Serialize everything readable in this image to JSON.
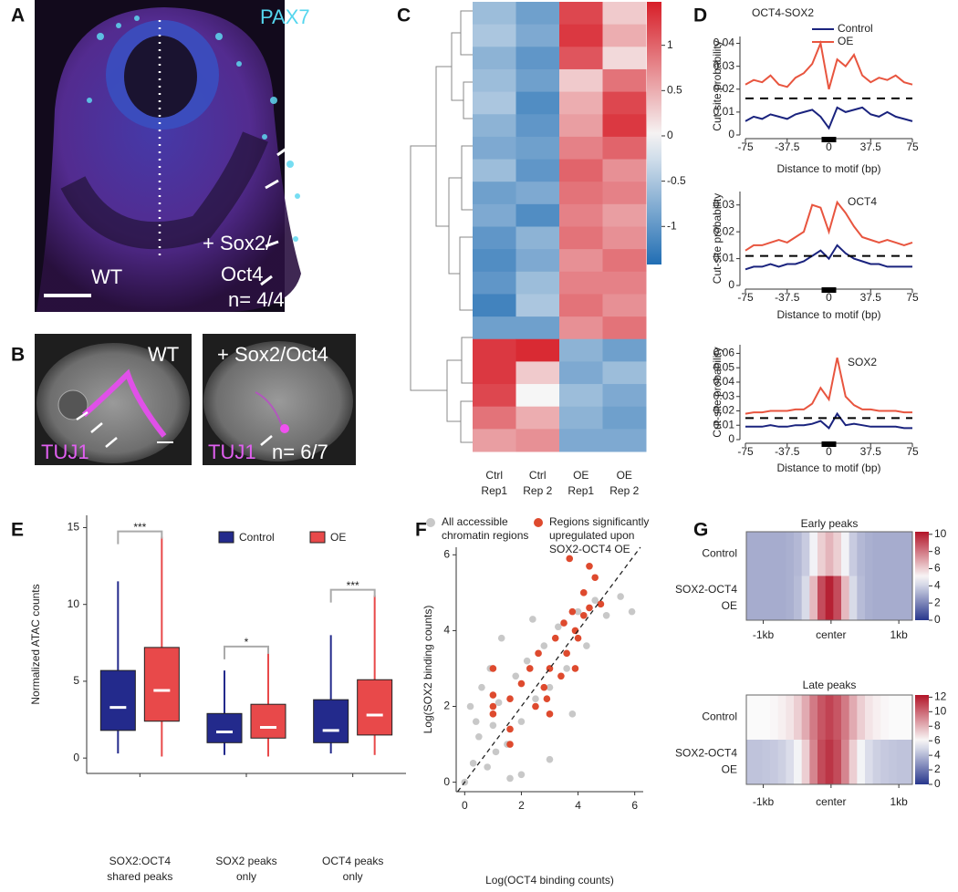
{
  "panel_labels": [
    "A",
    "B",
    "C",
    "D",
    "E",
    "F",
    "G"
  ],
  "images": {
    "a": {
      "marker": "PAX7",
      "control": "WT",
      "treatment": [
        "+ Sox2/",
        "Oct4"
      ],
      "n": "n= 4/4"
    },
    "b": {
      "control": "WT",
      "treatment": "+ Sox2/Oct4",
      "marker": "TUJ1",
      "n": "n= 6/7"
    }
  },
  "chart_data": [
    {
      "type": "heatmap",
      "categories": [
        [
          "Ctrl",
          "Rep1"
        ],
        [
          "Ctrl",
          "Rep 2"
        ],
        [
          "OE",
          "Rep1"
        ],
        [
          "OE",
          "Rep 2"
        ]
      ],
      "matrix": [
        [
          -0.6,
          -0.9,
          1.2,
          0.3
        ],
        [
          -0.5,
          -0.8,
          1.3,
          0.5
        ],
        [
          -0.7,
          -1.0,
          1.1,
          0.2
        ],
        [
          -0.6,
          -0.9,
          0.3,
          0.9
        ],
        [
          -0.5,
          -1.1,
          0.5,
          1.2
        ],
        [
          -0.7,
          -1.0,
          0.6,
          1.3
        ],
        [
          -0.8,
          -0.9,
          0.8,
          1.0
        ],
        [
          -0.6,
          -1.0,
          1.0,
          0.7
        ],
        [
          -0.9,
          -0.8,
          0.9,
          0.8
        ],
        [
          -0.8,
          -1.1,
          0.8,
          0.6
        ],
        [
          -1.0,
          -0.7,
          0.9,
          0.7
        ],
        [
          -1.1,
          -0.8,
          0.7,
          0.9
        ],
        [
          -1.0,
          -0.6,
          0.8,
          0.8
        ],
        [
          -1.2,
          -0.5,
          0.9,
          0.7
        ],
        [
          -0.9,
          -0.9,
          0.7,
          0.9
        ],
        [
          1.3,
          1.4,
          -0.7,
          -0.9
        ],
        [
          1.3,
          0.3,
          -0.8,
          -0.6
        ],
        [
          1.2,
          0.0,
          -0.6,
          -0.8
        ],
        [
          0.9,
          0.5,
          -0.7,
          -0.9
        ],
        [
          0.6,
          0.7,
          -0.8,
          -0.8
        ]
      ],
      "zlim": [
        -1.42,
        1.48
      ],
      "zticks": [
        1,
        0.5,
        0,
        -0.5,
        -1
      ]
    },
    {
      "type": "line",
      "title": "OCT4-SOX2",
      "xlabel": "Distance to motif (bp)",
      "ylabel": "Cut-site probability",
      "x": [
        -75,
        -67.5,
        -60,
        -52.5,
        -45,
        -37.5,
        -30,
        -22.5,
        -15,
        -7.5,
        0,
        7.5,
        15,
        22.5,
        30,
        37.5,
        45,
        52.5,
        60,
        67.5,
        75
      ],
      "series": [
        {
          "name": "Control",
          "color": "#1a237e",
          "values": [
            0.006,
            0.008,
            0.007,
            0.009,
            0.008,
            0.007,
            0.009,
            0.01,
            0.011,
            0.008,
            0.003,
            0.012,
            0.01,
            0.011,
            0.012,
            0.009,
            0.008,
            0.01,
            0.008,
            0.007,
            0.006
          ]
        },
        {
          "name": "OE",
          "color": "#e8553f",
          "values": [
            0.022,
            0.024,
            0.023,
            0.026,
            0.022,
            0.021,
            0.025,
            0.027,
            0.031,
            0.04,
            0.02,
            0.033,
            0.03,
            0.035,
            0.026,
            0.023,
            0.025,
            0.024,
            0.026,
            0.023,
            0.022
          ]
        }
      ],
      "reference_line": 0.016,
      "xlim": [
        -75,
        75
      ],
      "xticks": [
        -75,
        -37.5,
        0,
        37.5,
        75
      ],
      "ylim": [
        0,
        0.043
      ],
      "yticks": [
        0,
        0.01,
        0.02,
        0.03,
        0.04
      ]
    },
    {
      "type": "line",
      "title": "OCT4",
      "xlabel": "Distance to motif (bp)",
      "ylabel": "Cut-site probability",
      "x": [
        -75,
        -67.5,
        -60,
        -52.5,
        -45,
        -37.5,
        -30,
        -22.5,
        -15,
        -7.5,
        0,
        7.5,
        15,
        22.5,
        30,
        37.5,
        45,
        52.5,
        60,
        67.5,
        75
      ],
      "series": [
        {
          "color": "#1a237e",
          "values": [
            0.006,
            0.007,
            0.007,
            0.008,
            0.007,
            0.008,
            0.008,
            0.009,
            0.011,
            0.013,
            0.01,
            0.015,
            0.012,
            0.01,
            0.009,
            0.008,
            0.008,
            0.007,
            0.007,
            0.007,
            0.007
          ]
        },
        {
          "color": "#e8553f",
          "values": [
            0.013,
            0.015,
            0.015,
            0.016,
            0.017,
            0.016,
            0.018,
            0.02,
            0.03,
            0.029,
            0.02,
            0.031,
            0.027,
            0.022,
            0.018,
            0.017,
            0.016,
            0.017,
            0.016,
            0.015,
            0.016
          ]
        }
      ],
      "reference_line": 0.011,
      "xlim": [
        -75,
        75
      ],
      "xticks": [
        -75,
        -37.5,
        0,
        37.5,
        75
      ],
      "ylim": [
        0,
        0.035
      ],
      "yticks": [
        0,
        0.01,
        0.02,
        0.03
      ]
    },
    {
      "type": "line",
      "title": "SOX2",
      "xlabel": "Distance to motif (bp)",
      "ylabel": "Cut-site probability",
      "x": [
        -75,
        -67.5,
        -60,
        -52.5,
        -45,
        -37.5,
        -30,
        -22.5,
        -15,
        -7.5,
        0,
        7.5,
        15,
        22.5,
        30,
        37.5,
        45,
        52.5,
        60,
        67.5,
        75
      ],
      "series": [
        {
          "color": "#1a237e",
          "values": [
            0.009,
            0.009,
            0.009,
            0.01,
            0.009,
            0.009,
            0.01,
            0.01,
            0.011,
            0.013,
            0.008,
            0.018,
            0.01,
            0.011,
            0.01,
            0.009,
            0.009,
            0.009,
            0.009,
            0.008,
            0.008
          ]
        },
        {
          "color": "#e8553f",
          "values": [
            0.018,
            0.019,
            0.019,
            0.02,
            0.02,
            0.02,
            0.021,
            0.021,
            0.025,
            0.036,
            0.028,
            0.057,
            0.03,
            0.024,
            0.021,
            0.021,
            0.02,
            0.02,
            0.02,
            0.019,
            0.019
          ]
        }
      ],
      "reference_line": 0.015,
      "xlim": [
        -75,
        75
      ],
      "xticks": [
        -75,
        -37.5,
        0,
        37.5,
        75
      ],
      "ylim": [
        0,
        0.066
      ],
      "yticks": [
        0,
        0.01,
        0.02,
        0.03,
        0.04,
        0.05,
        0.06
      ]
    },
    {
      "type": "box",
      "ylabel": "Normalized ATAC counts",
      "categories": [
        [
          "SOX2:OCT4",
          "shared peaks"
        ],
        [
          "SOX2 peaks",
          "only"
        ],
        [
          "OCT4 peaks",
          "only"
        ]
      ],
      "series": [
        {
          "name": "Control",
          "color": "#232a8c",
          "stats": [
            [
              0.3,
              1.8,
              3.3,
              5.7,
              11.5
            ],
            [
              0.2,
              1.0,
              1.7,
              2.9,
              5.7
            ],
            [
              0.3,
              1.0,
              1.8,
              3.8,
              8.0
            ]
          ]
        },
        {
          "name": "OE",
          "color": "#e8494a",
          "stats": [
            [
              0.1,
              2.4,
              4.4,
              7.2,
              14.4
            ],
            [
              0.1,
              1.3,
              2.0,
              3.5,
              6.9
            ],
            [
              0.2,
              1.5,
              2.8,
              5.1,
              10.6
            ]
          ]
        }
      ],
      "significance": [
        "***",
        "*",
        "***"
      ],
      "ylim": [
        -1,
        15.8
      ],
      "yticks": [
        0,
        5,
        10,
        15
      ]
    },
    {
      "type": "scatter",
      "xlabel": "Log(OCT4 binding counts)",
      "ylabel": "Log(SOX2 binding counts)",
      "series": [
        {
          "name": [
            "All accessible",
            "chromatin regions"
          ],
          "color": "#c8c8c8",
          "x": [
            0,
            0.3,
            0.5,
            0.8,
            1,
            1.2,
            0.6,
            1.5,
            1.8,
            2,
            2.2,
            0.9,
            2.5,
            2.8,
            3,
            1.3,
            3.3,
            3.6,
            4,
            2.4,
            4.3,
            4.6,
            5,
            5.5,
            5.9,
            3,
            2,
            1.6,
            0.2,
            3.8,
            1.1,
            0.4
          ],
          "values": [
            0,
            0.5,
            1.2,
            0.4,
            1.5,
            2.1,
            2.5,
            1.0,
            2.8,
            1.6,
            3.2,
            3.0,
            2.2,
            3.6,
            2.5,
            3.8,
            4.1,
            3.0,
            4.5,
            4.3,
            3.6,
            4.8,
            4.4,
            4.9,
            4.5,
            0.6,
            0.2,
            0.1,
            2.0,
            1.8,
            0.8,
            1.6
          ]
        },
        {
          "name": [
            "Regions significantly",
            "upregulated upon",
            "SOX2-OCT4 OE"
          ],
          "color": "#de4a2e",
          "x": [
            1,
            1,
            1,
            1,
            1.6,
            1.6,
            1.6,
            2,
            2.3,
            2.5,
            2.6,
            2.8,
            3,
            3,
            3.2,
            3.4,
            3.5,
            3.6,
            3.8,
            3.9,
            4,
            4.2,
            4.2,
            4.4,
            4.6,
            4.8,
            3.7,
            4.4,
            3.9,
            2.9
          ],
          "values": [
            2.0,
            1.8,
            3.0,
            2.3,
            2.2,
            1.4,
            1.0,
            2.6,
            3.0,
            2.0,
            3.4,
            2.5,
            3.0,
            1.8,
            3.8,
            2.8,
            4.2,
            3.4,
            4.5,
            3.0,
            3.8,
            4.4,
            5.0,
            4.6,
            5.4,
            4.7,
            5.9,
            5.7,
            4.0,
            2.2
          ]
        }
      ],
      "xlim": [
        -0.3,
        6.3
      ],
      "xticks": [
        0,
        2,
        4,
        6
      ],
      "ylim": [
        -0.25,
        6.2
      ],
      "yticks": [
        0,
        2,
        4,
        6
      ]
    },
    {
      "type": "heatmap_profile",
      "title": "Early peaks",
      "rows": [
        [
          "Control"
        ],
        [
          "SOX2-OCT4",
          "OE"
        ]
      ],
      "matrix": [
        [
          3,
          3,
          3,
          3,
          3,
          3.1,
          3.3,
          3.8,
          4.8,
          6,
          6.6,
          6,
          4.8,
          3.8,
          3.3,
          3.1,
          3,
          3,
          3,
          3,
          3
        ],
        [
          3,
          3,
          3,
          3,
          3,
          3.1,
          3.4,
          4.2,
          6.5,
          9,
          10,
          9,
          6.5,
          4.2,
          3.4,
          3.1,
          3,
          3,
          3,
          3,
          3
        ]
      ],
      "xlim": [
        -1.25,
        1.2
      ],
      "xticks": [
        {
          "value": -1,
          "label": "-1kb"
        },
        {
          "value": 0,
          "label": "center"
        },
        {
          "value": 1,
          "label": "1kb"
        }
      ],
      "zlim": [
        0,
        10.3
      ],
      "zticks": [
        0,
        2,
        4,
        6,
        8,
        10
      ]
    },
    {
      "type": "heatmap_profile",
      "title": "Late peaks",
      "rows": [
        [
          "Control"
        ],
        [
          "SOX2-OCT4",
          "OE"
        ]
      ],
      "matrix": [
        [
          6,
          6,
          6,
          6.1,
          6.3,
          6.6,
          7.2,
          8.2,
          9.5,
          10.5,
          11,
          10.5,
          9.5,
          8.2,
          7.2,
          6.6,
          6.3,
          6.1,
          6,
          6,
          6
        ],
        [
          4.3,
          4.3,
          4.4,
          4.5,
          4.7,
          5.1,
          5.8,
          7.2,
          9.2,
          10.8,
          11.4,
          10.8,
          9.2,
          7.2,
          5.8,
          5.1,
          4.7,
          4.5,
          4.4,
          4.3,
          4.3
        ]
      ],
      "xlim": [
        -1.25,
        1.2
      ],
      "xticks": [
        {
          "value": -1,
          "label": "-1kb"
        },
        {
          "value": 0,
          "label": "center"
        },
        {
          "value": 1,
          "label": "1kb"
        }
      ],
      "zlim": [
        0,
        12.3
      ],
      "zticks": [
        0,
        2,
        4,
        6,
        8,
        10,
        12
      ]
    }
  ]
}
